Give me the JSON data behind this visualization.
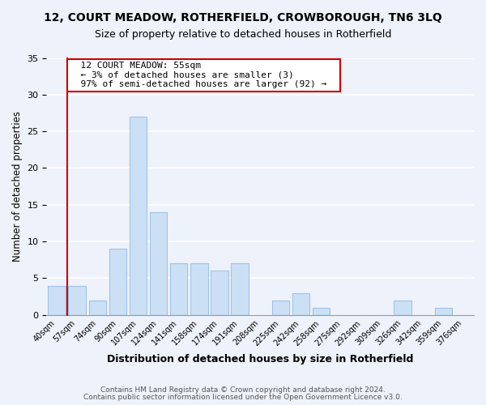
{
  "title": "12, COURT MEADOW, ROTHERFIELD, CROWBOROUGH, TN6 3LQ",
  "subtitle": "Size of property relative to detached houses in Rotherfield",
  "xlabel": "Distribution of detached houses by size in Rotherfield",
  "ylabel": "Number of detached properties",
  "footer_line1": "Contains HM Land Registry data © Crown copyright and database right 2024.",
  "footer_line2": "Contains public sector information licensed under the Open Government Licence v3.0.",
  "bar_labels": [
    "40sqm",
    "57sqm",
    "74sqm",
    "90sqm",
    "107sqm",
    "124sqm",
    "141sqm",
    "158sqm",
    "174sqm",
    "191sqm",
    "208sqm",
    "225sqm",
    "242sqm",
    "258sqm",
    "275sqm",
    "292sqm",
    "309sqm",
    "326sqm",
    "342sqm",
    "359sqm",
    "376sqm"
  ],
  "bar_values": [
    4,
    4,
    2,
    9,
    27,
    14,
    7,
    7,
    6,
    7,
    0,
    2,
    3,
    1,
    0,
    0,
    0,
    2,
    0,
    1,
    0
  ],
  "bar_color": "#cce0f5",
  "bar_edge_color": "#a0c4e8",
  "highlight_line_color": "#cc0000",
  "annotation_title": "12 COURT MEADOW: 55sqm",
  "annotation_line1": "← 3% of detached houses are smaller (3)",
  "annotation_line2": "97% of semi-detached houses are larger (92) →",
  "annotation_box_color": "#ffffff",
  "annotation_box_edge_color": "#cc0000",
  "ylim": [
    0,
    35
  ],
  "yticks": [
    0,
    5,
    10,
    15,
    20,
    25,
    30,
    35
  ],
  "background_color": "#eef2fa"
}
